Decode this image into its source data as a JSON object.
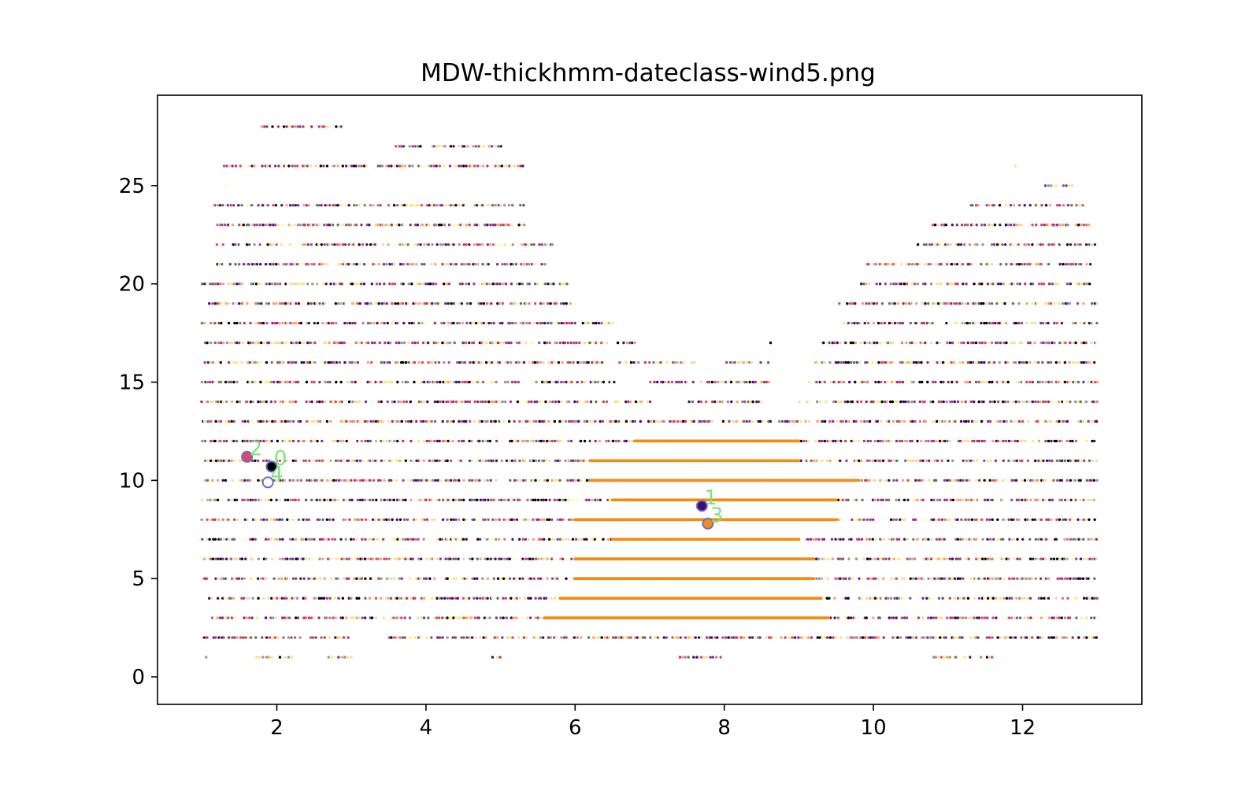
{
  "chart_data": {
    "type": "scatter",
    "title": "MDW-thickhmm-dateclass-wind5.png",
    "xlabel": "",
    "ylabel": "",
    "xlim": [
      0.4,
      13.6
    ],
    "ylim": [
      -1.4,
      29.6
    ],
    "x_ticks": [
      2,
      4,
      6,
      8,
      10,
      12
    ],
    "y_ticks": [
      0,
      5,
      10,
      15,
      20,
      25
    ],
    "grid": false,
    "legend": "none",
    "palette": [
      "#000004",
      "#3b0f70",
      "#8c2981",
      "#de4968",
      "#b5367a",
      "#fe9f6d",
      "#fcfdbf",
      "#f5e97a",
      "#e8e0a0",
      "#6b6b6b",
      "#9a8fa6"
    ],
    "dense_color": "#f28c12",
    "cluster_colors": {
      "fill_0": "#000004",
      "fill_1": "#3b0f70",
      "fill_2": "#de4968",
      "fill_3": "#f28c12",
      "fill_4": "#ffffff",
      "edge": "#6b6bd6",
      "label": "#7ee37e"
    },
    "background_points": {
      "description_source": "horizontal bands of tiny points at integer y levels across months 1-13",
      "x_start": 1.0,
      "x_end": 13.0,
      "band_extents": [
        {
          "y": 0,
          "x_ranges": [
            [
              8.55,
              8.57
            ]
          ]
        },
        {
          "y": 1,
          "x_ranges": [
            [
              1.0,
              1.1
            ],
            [
              1.7,
              2.2
            ],
            [
              2.7,
              3.0
            ],
            [
              4.9,
              5.0
            ],
            [
              7.4,
              8.0
            ],
            [
              10.8,
              11.6
            ]
          ]
        },
        {
          "y": 2,
          "x_ranges": [
            [
              1.0,
              3.0
            ],
            [
              3.5,
              6.0
            ],
            [
              6.0,
              10.0
            ],
            [
              10.0,
              13.0
            ]
          ]
        },
        {
          "y": 3,
          "x_ranges": [
            [
              1.1,
              13.0
            ]
          ]
        },
        {
          "y": 4,
          "x_ranges": [
            [
              1.1,
              13.0
            ]
          ]
        },
        {
          "y": 5,
          "x_ranges": [
            [
              1.0,
              13.0
            ]
          ]
        },
        {
          "y": 6,
          "x_ranges": [
            [
              1.0,
              13.0
            ]
          ]
        },
        {
          "y": 7,
          "x_ranges": [
            [
              1.0,
              13.0
            ]
          ]
        },
        {
          "y": 8,
          "x_ranges": [
            [
              1.0,
              13.0
            ]
          ]
        },
        {
          "y": 9,
          "x_ranges": [
            [
              1.0,
              13.0
            ]
          ]
        },
        {
          "y": 10,
          "x_ranges": [
            [
              1.0,
              13.0
            ]
          ]
        },
        {
          "y": 11,
          "x_ranges": [
            [
              1.0,
              13.0
            ]
          ]
        },
        {
          "y": 12,
          "x_ranges": [
            [
              1.0,
              13.0
            ]
          ]
        },
        {
          "y": 13,
          "x_ranges": [
            [
              1.0,
              13.0
            ]
          ]
        },
        {
          "y": 14,
          "x_ranges": [
            [
              1.0,
              7.0
            ],
            [
              7.5,
              8.5
            ],
            [
              9.0,
              13.0
            ]
          ]
        },
        {
          "y": 15,
          "x_ranges": [
            [
              1.0,
              6.6
            ],
            [
              7.0,
              8.6
            ],
            [
              9.1,
              13.0
            ]
          ]
        },
        {
          "y": 16,
          "x_ranges": [
            [
              1.0,
              6.4
            ],
            [
              6.6,
              7.6
            ],
            [
              8.0,
              8.6
            ],
            [
              9.2,
              13.0
            ]
          ]
        },
        {
          "y": 17,
          "x_ranges": [
            [
              1.0,
              5.8
            ],
            [
              5.8,
              6.8
            ],
            [
              8.6,
              8.65
            ],
            [
              9.3,
              13.0
            ]
          ]
        },
        {
          "y": 18,
          "x_ranges": [
            [
              1.0,
              6.5
            ],
            [
              9.6,
              13.0
            ]
          ]
        },
        {
          "y": 19,
          "x_ranges": [
            [
              1.1,
              6.0
            ],
            [
              9.5,
              13.0
            ]
          ]
        },
        {
          "y": 20,
          "x_ranges": [
            [
              1.0,
              5.9
            ],
            [
              9.8,
              12.9
            ]
          ]
        },
        {
          "y": 21,
          "x_ranges": [
            [
              1.2,
              5.6
            ],
            [
              9.9,
              12.9
            ]
          ]
        },
        {
          "y": 22,
          "x_ranges": [
            [
              1.2,
              5.7
            ],
            [
              10.6,
              13.0
            ]
          ]
        },
        {
          "y": 23,
          "x_ranges": [
            [
              1.2,
              5.4
            ],
            [
              10.8,
              12.9
            ]
          ]
        },
        {
          "y": 24,
          "x_ranges": [
            [
              1.1,
              5.3
            ],
            [
              11.3,
              12.8
            ]
          ]
        },
        {
          "y": 25,
          "x_ranges": [
            [
              1.3,
              1.35
            ],
            [
              12.3,
              12.7
            ]
          ]
        },
        {
          "y": 26,
          "x_ranges": [
            [
              1.3,
              5.3
            ],
            [
              11.8,
              11.9
            ]
          ]
        },
        {
          "y": 27,
          "x_ranges": [
            [
              3.6,
              5.0
            ],
            [
              11.6,
              11.65
            ]
          ]
        },
        {
          "y": 28,
          "x_ranges": [
            [
              1.8,
              2.9
            ]
          ]
        }
      ],
      "dense_region": [
        {
          "y": 3,
          "x_range": [
            5.6,
            9.4
          ]
        },
        {
          "y": 4,
          "x_range": [
            5.8,
            9.3
          ]
        },
        {
          "y": 5,
          "x_range": [
            6.0,
            9.2
          ]
        },
        {
          "y": 6,
          "x_range": [
            6.0,
            9.2
          ]
        },
        {
          "y": 7,
          "x_range": [
            6.5,
            9.0
          ]
        },
        {
          "y": 8,
          "x_range": [
            6.0,
            9.5
          ]
        },
        {
          "y": 9,
          "x_range": [
            6.5,
            9.5
          ]
        },
        {
          "y": 10,
          "x_range": [
            6.2,
            9.8
          ]
        },
        {
          "y": 11,
          "x_range": [
            6.2,
            9.0
          ]
        },
        {
          "y": 12,
          "x_range": [
            6.8,
            9.0
          ]
        }
      ]
    },
    "clusters": [
      {
        "label": "0",
        "x": 1.93,
        "y": 10.7,
        "fill": "fill_0"
      },
      {
        "label": "1",
        "x": 7.7,
        "y": 8.7,
        "fill": "fill_1"
      },
      {
        "label": "2",
        "x": 1.6,
        "y": 11.2,
        "fill": "fill_2"
      },
      {
        "label": "3",
        "x": 7.78,
        "y": 7.8,
        "fill": "fill_3"
      },
      {
        "label": "4",
        "x": 1.88,
        "y": 9.9,
        "fill": "fill_4"
      }
    ]
  }
}
